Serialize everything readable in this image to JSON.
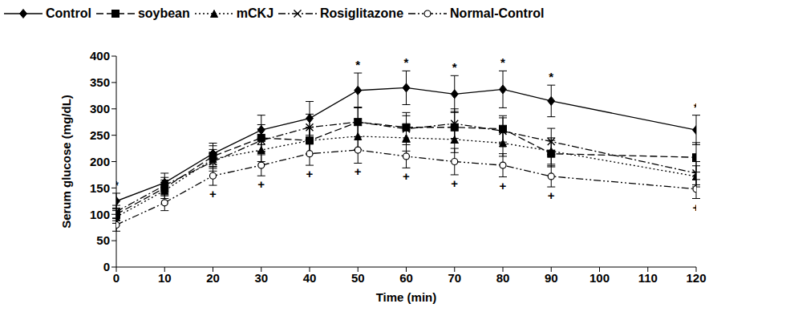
{
  "chart_data": {
    "type": "line",
    "x_label": "Time (min)",
    "y_label": "Serum glucose (mg/dL)",
    "x": [
      0,
      10,
      20,
      30,
      40,
      50,
      60,
      70,
      80,
      90,
      120
    ],
    "xlim": [
      0,
      120
    ],
    "xticks": [
      0,
      10,
      20,
      30,
      40,
      50,
      60,
      70,
      80,
      90,
      100,
      110,
      120
    ],
    "ylim": [
      0,
      400
    ],
    "yticks": [
      0,
      50,
      100,
      150,
      200,
      250,
      300,
      350,
      400
    ],
    "grid": false,
    "legend": "top",
    "series": [
      {
        "name": "Control",
        "color": "#000000",
        "marker": "diamond",
        "line_style": "solid",
        "values": [
          125,
          160,
          215,
          260,
          282,
          335,
          340,
          328,
          337,
          315,
          260
        ],
        "error": [
          15,
          18,
          20,
          28,
          32,
          33,
          32,
          35,
          35,
          30,
          28
        ]
      },
      {
        "name": "soybean",
        "color": "#000000",
        "marker": "square",
        "line_style": "dashed",
        "values": [
          100,
          150,
          210,
          245,
          240,
          275,
          265,
          265,
          262,
          215,
          208
        ],
        "error": [
          12,
          15,
          20,
          25,
          25,
          28,
          28,
          30,
          25,
          25,
          28
        ]
      },
      {
        "name": "mCKJ",
        "color": "#000000",
        "marker": "triangle",
        "line_style": "dotted",
        "values": [
          95,
          145,
          205,
          222,
          240,
          248,
          245,
          242,
          235,
          220,
          172
        ],
        "error": [
          12,
          15,
          18,
          22,
          25,
          25,
          25,
          25,
          25,
          25,
          20
        ]
      },
      {
        "name": "Rosiglitazone",
        "color": "#000000",
        "marker": "x",
        "line_style": "dashdot",
        "values": [
          105,
          155,
          200,
          240,
          265,
          275,
          262,
          272,
          258,
          238,
          178
        ],
        "error": [
          12,
          15,
          18,
          22,
          25,
          28,
          25,
          28,
          25,
          25,
          22
        ]
      },
      {
        "name": "Normal-Control",
        "color": "#000000",
        "marker": "circle",
        "line_style": "dashdotdot",
        "values": [
          80,
          122,
          173,
          193,
          215,
          222,
          210,
          200,
          193,
          172,
          148
        ],
        "error": [
          12,
          15,
          18,
          20,
          22,
          25,
          22,
          25,
          22,
          20,
          18
        ]
      }
    ],
    "annotations": [
      {
        "text": "*",
        "series": "Control",
        "position": "above",
        "x": [
          0,
          50,
          60,
          70,
          80,
          90,
          120
        ]
      },
      {
        "text": "+",
        "series": "Normal-Control",
        "position": "below",
        "x": [
          20,
          30,
          40,
          50,
          60,
          70,
          80,
          90,
          120
        ]
      }
    ]
  }
}
